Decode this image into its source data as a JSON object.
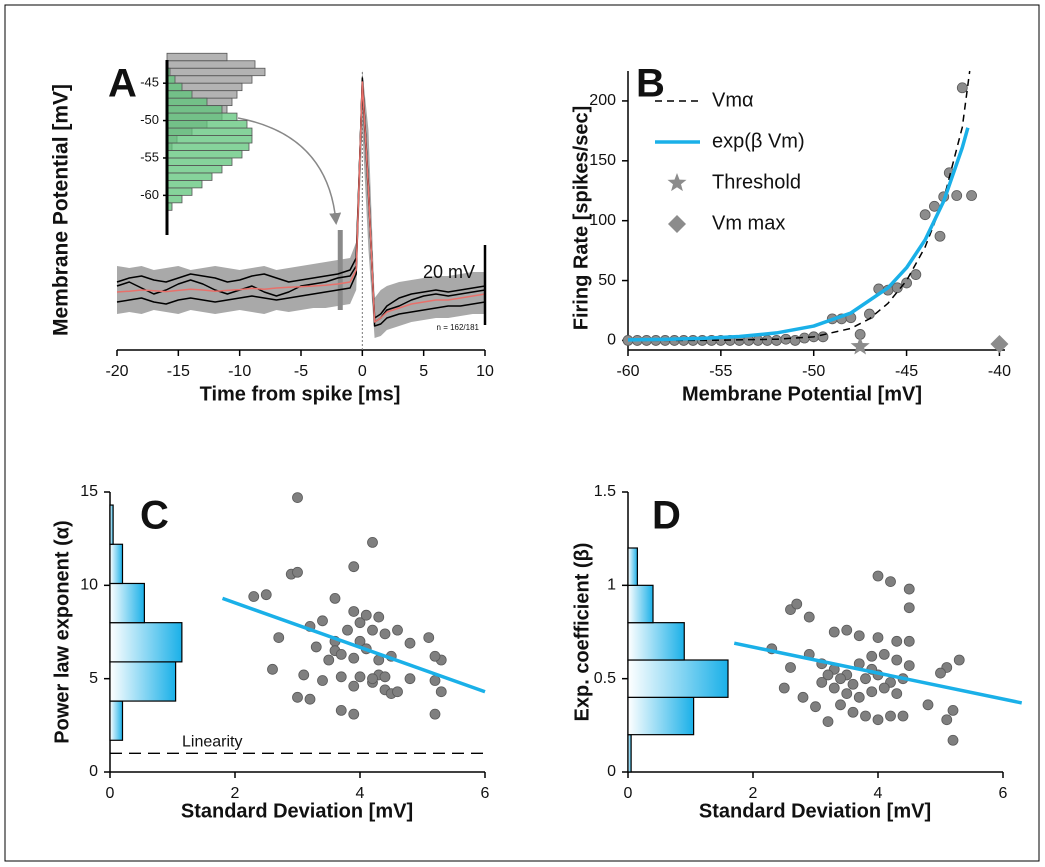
{
  "chart_data": [
    {
      "type": "line",
      "panel_label": "A",
      "xlabel": "Time from spike [ms]",
      "ylabel": "Membrane Potential [mV]",
      "xlim": [
        -20,
        10
      ],
      "xticks": [
        -20,
        -15,
        -10,
        -5,
        0,
        5,
        10
      ],
      "ylim": [
        -65,
        5
      ],
      "x": [
        -20,
        -19,
        -18,
        -17,
        -16,
        -15,
        -14,
        -13,
        -12,
        -11,
        -10,
        -9,
        -8,
        -7,
        -6,
        -5,
        -4,
        -3,
        -2,
        -1,
        -0.5,
        0,
        0.5,
        1,
        1.5,
        2,
        3,
        4,
        5,
        6,
        7,
        8,
        9,
        10
      ],
      "band": {
        "color": "#9a9a9a",
        "low": [
          -56,
          -55.5,
          -56,
          -55,
          -55.5,
          -56,
          -55,
          -55.5,
          -56,
          -55.5,
          -55,
          -55.5,
          -56,
          -55,
          -55.5,
          -55,
          -54.5,
          -54.5,
          -54,
          -53.5,
          -50,
          -10,
          -40,
          -62,
          -61.5,
          -60,
          -59,
          -58,
          -57.5,
          -57,
          -57,
          -56.5,
          -56,
          -56
        ],
        "high": [
          -44,
          -44.5,
          -44,
          -45,
          -44.5,
          -44,
          -45,
          -44.5,
          -44,
          -44.5,
          -45,
          -44.5,
          -44,
          -45,
          -44.5,
          -44,
          -43.5,
          -43,
          -42.5,
          -42,
          -38,
          5,
          -10,
          -52,
          -50,
          -49,
          -48,
          -47.5,
          -47,
          -46.5,
          -46.5,
          -46,
          -45.5,
          -45.5
        ]
      },
      "series": [
        {
          "color": "#000000",
          "mode": "line",
          "values": [
            -48,
            -47,
            -46.5,
            -47.5,
            -48,
            -47,
            -46,
            -46.5,
            -47,
            -48,
            -47.5,
            -46.5,
            -46,
            -47,
            -48,
            -47.5,
            -47,
            -46.5,
            -46,
            -45,
            -42,
            1,
            -26,
            -57,
            -56,
            -54,
            -52,
            -51,
            -50.5,
            -50,
            -50.5,
            -50,
            -49.5,
            -49
          ]
        },
        {
          "color": "#000000",
          "mode": "line",
          "values": [
            -53,
            -52.5,
            -52,
            -53,
            -53.5,
            -52.5,
            -52,
            -52.5,
            -53,
            -52.5,
            -52,
            -51.5,
            -52,
            -52.5,
            -52,
            -51.5,
            -51,
            -50.5,
            -50,
            -49.5,
            -46,
            3,
            -24,
            -59,
            -58.5,
            -57,
            -56,
            -55.5,
            -55,
            -54.5,
            -54,
            -54,
            -53.5,
            -53
          ]
        },
        {
          "color": "#000000",
          "mode": "line",
          "values": [
            -49,
            -48,
            -49.5,
            -51,
            -50,
            -48.5,
            -47.5,
            -48.5,
            -50,
            -51,
            -50,
            -49,
            -50.5,
            -51.5,
            -50.5,
            -49,
            -48.5,
            -48,
            -47,
            -46.5,
            -44,
            2.5,
            -25,
            -58,
            -57,
            -55,
            -54,
            -52.5,
            -51.5,
            -51,
            -51.5,
            -51,
            -50.5,
            -50
          ]
        },
        {
          "color": "#e8706a",
          "mode": "line",
          "values": [
            -50.5,
            -50.3,
            -50,
            -50.2,
            -50.4,
            -50.1,
            -49.8,
            -50,
            -50.3,
            -50.1,
            -49.9,
            -49.6,
            -49.8,
            -49.5,
            -49.3,
            -49.2,
            -49,
            -48.8,
            -48.5,
            -48,
            -45,
            2,
            -25,
            -58,
            -57,
            -55.5,
            -54.5,
            -53.5,
            -53,
            -52.5,
            -52.5,
            -52,
            -51.5,
            -51
          ]
        }
      ],
      "marker": {
        "x": -1.8,
        "range": [
          -55,
          -35
        ]
      },
      "spike_time": 0,
      "scale_bar": {
        "value": 20,
        "label": "20 mV"
      },
      "annotation": "n = 162/181",
      "inset": {
        "xlim": [
          0,
          10
        ],
        "ylim": [
          -65.3,
          -41.9
        ],
        "yticks": [
          -45,
          -50,
          -55,
          -60
        ],
        "bins": [
          -62,
          -61,
          -60,
          -59,
          -58,
          -57,
          -56,
          -55,
          -54,
          -53,
          -52,
          -51,
          -50,
          -49,
          -48,
          -47,
          -46,
          -45,
          -44,
          -43,
          -42,
          -41
        ],
        "series": [
          {
            "color": "#9a9a9a",
            "values": [
              0,
              0,
              0,
              0,
              0,
              0,
              0,
              0,
              0.5,
              1,
              2.5,
              4,
              5.5,
              6,
              6.5,
              7,
              7.5,
              8.5,
              9.8,
              8.8,
              6
            ]
          },
          {
            "color": "#5ec47a",
            "values": [
              0.5,
              1.5,
              2.5,
              3.5,
              4.5,
              5.5,
              6.5,
              7.5,
              8.2,
              8.5,
              8.5,
              8,
              7,
              5.5,
              4,
              2.5,
              1.5,
              0.8,
              0.3,
              0,
              0
            ]
          }
        ]
      }
    },
    {
      "type": "scatter",
      "panel_label": "B",
      "xlabel": "Membrane Potential [mV]",
      "ylabel": "Firing Rate [spikes/sec]",
      "xlim": [
        -60,
        -39.7
      ],
      "xticks": [
        -60,
        -55,
        -50,
        -45,
        -40
      ],
      "ylim": [
        -8,
        225
      ],
      "yticks": [
        0,
        50,
        100,
        150,
        200
      ],
      "legend": "upper left",
      "series": [
        {
          "color": "#8c8c8c",
          "mode": "points",
          "x": [
            -60,
            -59.5,
            -59,
            -58.5,
            -58,
            -57.5,
            -57,
            -56.5,
            -56,
            -55.5,
            -55,
            -54.5,
            -54,
            -53.5,
            -53,
            -52.5,
            -52,
            -51.5,
            -51,
            -50.5,
            -50,
            -49.5,
            -49,
            -48.5,
            -48,
            -47.5,
            -47,
            -46.5,
            -46,
            -45.5,
            -45,
            -44.5,
            -44,
            -43.5,
            -43.2,
            -43,
            -42.7,
            -42.3,
            -42,
            -41.5
          ],
          "values": [
            0,
            0,
            0,
            0,
            0,
            0,
            0,
            0,
            0,
            0,
            0,
            0,
            0,
            0,
            0,
            0,
            0,
            1,
            0,
            2,
            3,
            3,
            18,
            18,
            19,
            5,
            22,
            43,
            42,
            44,
            48,
            55,
            105,
            112,
            87,
            120,
            140,
            121,
            211,
            121
          ]
        },
        {
          "name": "Vmα",
          "color": "#000000",
          "mode": "line",
          "dash": true,
          "x": [
            -60,
            -56,
            -52,
            -50,
            -48,
            -47,
            -46,
            -45,
            -44,
            -43,
            -42,
            -41.6
          ],
          "values": [
            0,
            0,
            1,
            3,
            10,
            18,
            31,
            50,
            78,
            118,
            178,
            225
          ]
        },
        {
          "name": "exp(β Vm)",
          "color": "#1ab0e8",
          "mode": "line",
          "x": [
            -60,
            -58,
            -56,
            -54,
            -52,
            -50,
            -48,
            -46,
            -45,
            -44,
            -43,
            -42,
            -41.7
          ],
          "values": [
            0.47,
            0.89,
            1.71,
            3.27,
            6.26,
            12,
            22.9,
            43.9,
            60.7,
            84,
            116.3,
            161,
            177.6
          ]
        },
        {
          "name": "Threshold",
          "color": "#8c8c8c",
          "mode": "star",
          "x": [
            -47.5
          ],
          "values": [
            -5
          ]
        },
        {
          "name": "Vm max",
          "color": "#8c8c8c",
          "mode": "diamond",
          "x": [
            -40
          ],
          "values": [
            -3
          ]
        }
      ]
    },
    {
      "type": "scatter",
      "panel_label": "C",
      "xlabel": "Standard Deviation [mV]",
      "ylabel": "Power law exponent (α)",
      "xlim": [
        0,
        6
      ],
      "xticks": [
        0,
        2,
        4,
        6
      ],
      "ylim": [
        0,
        15
      ],
      "yticks": [
        0,
        5,
        10,
        15
      ],
      "hist": {
        "color": "#1ab0e8",
        "bins": [
          1.7,
          3.8,
          5.9,
          8,
          10.1,
          12.2,
          14.3
        ],
        "counts": [
          0.2,
          1.05,
          1.15,
          0.55,
          0.2,
          0.05
        ]
      },
      "reference": {
        "value": 1,
        "label": "Linearity"
      },
      "series": [
        {
          "color": "#7f7f7f",
          "mode": "points",
          "x": [
            3.0,
            2.3,
            2.5,
            2.9,
            3.0,
            3.6,
            4.2,
            3.9,
            3.2,
            3.4,
            3.6,
            3.8,
            4.0,
            4.2,
            4.3,
            4.4,
            4.6,
            4.0,
            3.6,
            3.3,
            3.5,
            3.7,
            3.9,
            4.1,
            4.3,
            4.5,
            2.7,
            2.6,
            3.1,
            3.4,
            3.7,
            3.9,
            4.0,
            4.2,
            4.3,
            4.4,
            4.5,
            4.6,
            4.2,
            5.2,
            5.3,
            5.2,
            5.3,
            5.2,
            3.7,
            3.9,
            4.8,
            4.4,
            3.0,
            3.2,
            4.8,
            5.1,
            3.9,
            4.1
          ],
          "values": [
            14.7,
            9.4,
            9.5,
            10.6,
            10.7,
            9.3,
            12.3,
            11.0,
            7.8,
            8.1,
            7.0,
            7.6,
            8.0,
            7.6,
            8.3,
            7.4,
            7.6,
            7.0,
            6.5,
            6.7,
            6.0,
            6.3,
            6.1,
            6.6,
            6.0,
            6.2,
            7.2,
            5.5,
            5.2,
            4.9,
            5.1,
            4.6,
            5.1,
            4.8,
            5.2,
            4.4,
            4.2,
            4.3,
            5.0,
            4.9,
            6.0,
            6.2,
            4.3,
            3.1,
            3.3,
            3.1,
            5.0,
            5.1,
            4.0,
            3.9,
            6.9,
            7.2,
            8.6,
            8.4
          ]
        },
        {
          "color": "#1ab0e8",
          "mode": "line",
          "x": [
            1.8,
            6
          ],
          "values": [
            9.3,
            4.3
          ]
        }
      ]
    },
    {
      "type": "scatter",
      "panel_label": "D",
      "xlabel": "Standard Deviation [mV]",
      "ylabel": "Exp. coefficient (β)",
      "xlim": [
        0,
        6
      ],
      "xticks": [
        0,
        2,
        4,
        6
      ],
      "ylim": [
        0,
        1.5
      ],
      "yticks": [
        0,
        0.5,
        1,
        1.5
      ],
      "hist": {
        "color": "#1ab0e8",
        "bins": [
          0,
          0.2,
          0.4,
          0.6,
          0.8,
          1.0,
          1.2
        ],
        "counts": [
          0.05,
          1.05,
          1.6,
          0.9,
          0.4,
          0.15
        ]
      },
      "series": [
        {
          "color": "#7f7f7f",
          "mode": "points",
          "x": [
            2.6,
            2.7,
            2.9,
            4.0,
            4.2,
            4.5,
            4.5,
            3.5,
            3.3,
            3.7,
            4.0,
            4.3,
            4.5,
            2.3,
            2.9,
            3.1,
            3.3,
            3.5,
            3.7,
            3.9,
            4.1,
            4.3,
            4.5,
            3.2,
            3.4,
            3.6,
            3.8,
            4.0,
            4.2,
            4.4,
            3.1,
            3.3,
            3.5,
            3.7,
            3.9,
            4.1,
            4.3,
            2.5,
            2.8,
            3.0,
            3.4,
            3.6,
            3.8,
            4.0,
            4.2,
            4.4,
            3.2,
            5.1,
            5.3,
            5.2,
            5.1,
            5.2,
            4.8,
            5.0,
            2.6,
            3.9
          ],
          "values": [
            0.87,
            0.9,
            0.83,
            1.05,
            1.02,
            0.98,
            0.88,
            0.76,
            0.75,
            0.73,
            0.72,
            0.7,
            0.7,
            0.66,
            0.63,
            0.58,
            0.55,
            0.52,
            0.58,
            0.62,
            0.63,
            0.6,
            0.57,
            0.52,
            0.5,
            0.47,
            0.5,
            0.52,
            0.48,
            0.5,
            0.48,
            0.45,
            0.42,
            0.4,
            0.43,
            0.45,
            0.42,
            0.45,
            0.4,
            0.35,
            0.36,
            0.32,
            0.3,
            0.28,
            0.3,
            0.3,
            0.27,
            0.56,
            0.6,
            0.33,
            0.28,
            0.17,
            0.36,
            0.53,
            0.56,
            0.55
          ]
        },
        {
          "color": "#1ab0e8",
          "mode": "line",
          "x": [
            1.7,
            6.3
          ],
          "values": [
            0.69,
            0.37
          ]
        }
      ]
    }
  ]
}
